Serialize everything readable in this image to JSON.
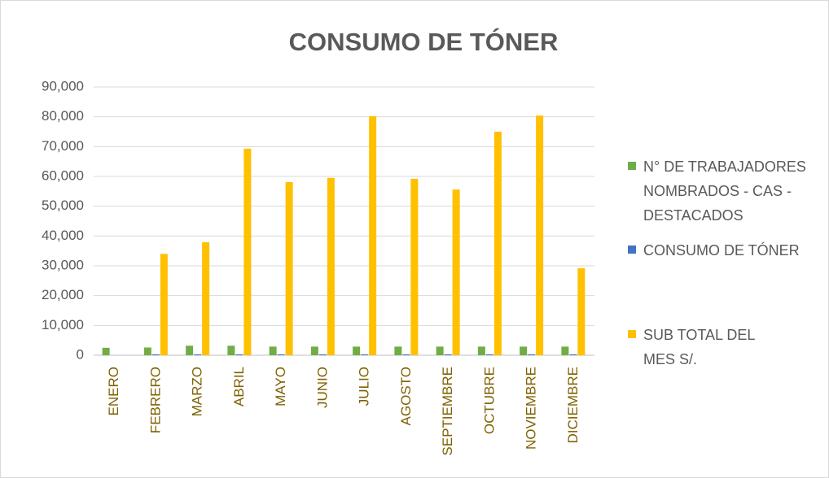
{
  "chart_data": {
    "type": "bar",
    "title": "CONSUMO DE TÓNER",
    "categories": [
      "ENERO",
      "FEBRERO",
      "MARZO",
      "ABRIL",
      "MAYO",
      "JUNIO",
      "JULIO",
      "AGOSTO",
      "SEPTIEMBRE",
      "OCTUBRE",
      "NOVIEMBRE",
      "DICIEMBRE"
    ],
    "series": [
      {
        "name": "N° DE TRABAJADORES NOMBRADOS - CAS - DESTACADOS",
        "color": "#70ad47",
        "values": [
          2500,
          2600,
          3200,
          3200,
          2900,
          2900,
          2900,
          2900,
          2900,
          2900,
          2900,
          2900
        ]
      },
      {
        "name": "CONSUMO DE TÓNER",
        "color": "#4472c4",
        "values": [
          0,
          300,
          300,
          300,
          300,
          300,
          300,
          300,
          300,
          300,
          300,
          300
        ]
      },
      {
        "name": "SUB TOTAL DEL MES S/.",
        "color": "#ffc000",
        "values": [
          0,
          34000,
          37900,
          69300,
          58100,
          59500,
          80200,
          59200,
          55600,
          75000,
          80400,
          29200
        ]
      }
    ],
    "ylim": [
      0,
      90000
    ],
    "yticks": [
      0,
      {
        "value": 10000,
        "label": "10,000"
      },
      {
        "value": 20000,
        "label": "20,000"
      },
      {
        "value": 30000,
        "label": "30,000"
      },
      {
        "value": 40000,
        "label": "40,000"
      },
      {
        "value": 50000,
        "label": "50,000"
      },
      {
        "value": 60000,
        "label": "60,000"
      },
      {
        "value": 70000,
        "label": "70,000"
      },
      {
        "value": 80000,
        "label": "80,000"
      },
      {
        "value": 90000,
        "label": "90,000"
      }
    ],
    "grid": true,
    "legend": "right"
  }
}
